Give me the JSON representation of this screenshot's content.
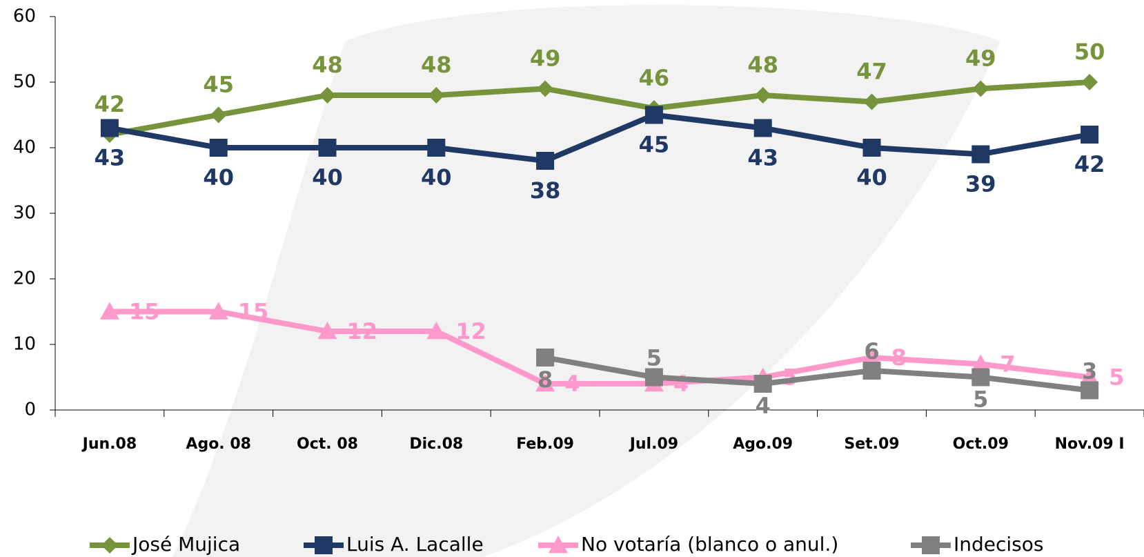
{
  "chart_data": {
    "type": "line",
    "categories": [
      "Jun.08",
      "Ago. 08",
      "Oct. 08",
      "Dic.08",
      "Feb.09",
      "Jul.09",
      "Ago.09",
      "Set.09",
      "Oct.09",
      "Nov.09 I"
    ],
    "series": [
      {
        "name": "José Mujica",
        "color": "#77933c",
        "marker": "diamond",
        "values": [
          42,
          45,
          48,
          48,
          49,
          46,
          48,
          47,
          49,
          50
        ]
      },
      {
        "name": "Luis A. Lacalle",
        "color": "#1f3864",
        "marker": "square",
        "values": [
          43,
          40,
          40,
          40,
          38,
          45,
          43,
          40,
          39,
          42
        ]
      },
      {
        "name": "No votaría (blanco o anul.)",
        "color": "#ff99cc",
        "marker": "triangle",
        "values": [
          15,
          15,
          12,
          12,
          4,
          4,
          5,
          8,
          7,
          5
        ]
      },
      {
        "name": "Indecisos",
        "color": "#808080",
        "marker": "square",
        "values": [
          null,
          null,
          null,
          null,
          8,
          5,
          4,
          6,
          5,
          3
        ]
      }
    ],
    "ylim": [
      0,
      60
    ],
    "yticks": [
      0,
      10,
      20,
      30,
      40,
      50,
      60
    ],
    "grid": false,
    "legend": "bottom"
  }
}
